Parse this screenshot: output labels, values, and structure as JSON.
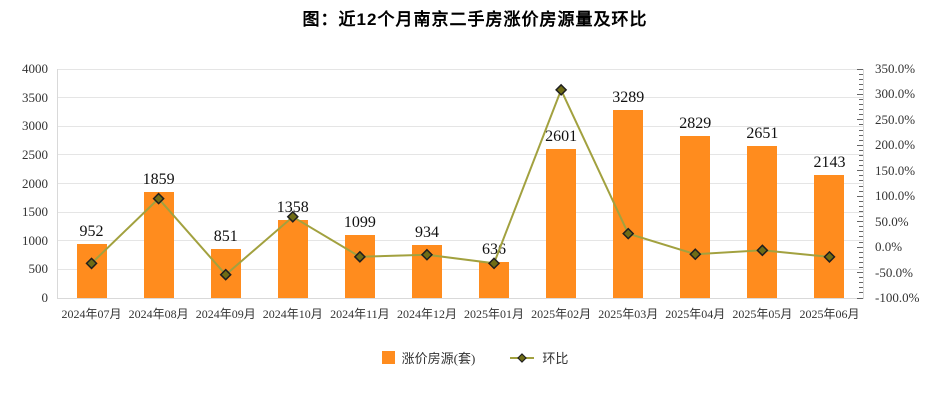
{
  "title": "图：近12个月南京二手房涨价房源量及环比",
  "legend": {
    "bars_label": "涨价房源(套)",
    "line_label": "环比"
  },
  "colors": {
    "bar": "#FF8C1E",
    "line": "#A2A13F",
    "marker_fill": "#6F6C15",
    "marker_stroke": "#1F1F1F",
    "grid": "#E5E5E5",
    "axis": "#D9D9D9",
    "label_text": "#111111",
    "tick_text": "#333333"
  },
  "chart_data": {
    "type": "bar",
    "subtype": "bar-line-combo",
    "title": "图：近12个月南京二手房涨价房源量及环比",
    "categories": [
      "2024年07月",
      "2024年08月",
      "2024年09月",
      "2024年10月",
      "2024年11月",
      "2024年12月",
      "2025年01月",
      "2025年02月",
      "2025年03月",
      "2025年04月",
      "2025年05月",
      "2025年06月"
    ],
    "series": [
      {
        "name": "涨价房源(套)",
        "type": "bar",
        "axis": "left",
        "values": [
          952,
          1859,
          851,
          1358,
          1099,
          934,
          636,
          2601,
          3289,
          2829,
          2651,
          2143
        ],
        "data_labels": [
          "952",
          "1859",
          "851",
          "1358",
          "1099",
          "934",
          "636",
          "2601",
          "3289",
          "2829",
          "2651",
          "2143"
        ]
      },
      {
        "name": "环比",
        "type": "line",
        "axis": "right",
        "unit": "%",
        "values": [
          -32.0,
          95.3,
          -54.2,
          59.6,
          -19.1,
          -15.0,
          -31.9,
          309.0,
          26.5,
          -14.0,
          -6.3,
          -19.2
        ]
      }
    ],
    "left_axis": {
      "min": 0,
      "max": 4000,
      "tick_step": 500,
      "tick_labels": [
        "0",
        "500",
        "1000",
        "1500",
        "2000",
        "2500",
        "3000",
        "3500",
        "4000"
      ]
    },
    "right_axis": {
      "min": -100,
      "max": 350,
      "tick_step": 50,
      "minor_tick_step": 10,
      "tick_labels": [
        "-100.0%",
        "-50.0%",
        "0.0%",
        "50.0%",
        "100.0%",
        "150.0%",
        "200.0%",
        "250.0%",
        "300.0%",
        "350.0%"
      ]
    },
    "grid": true,
    "legend_position": "bottom"
  }
}
